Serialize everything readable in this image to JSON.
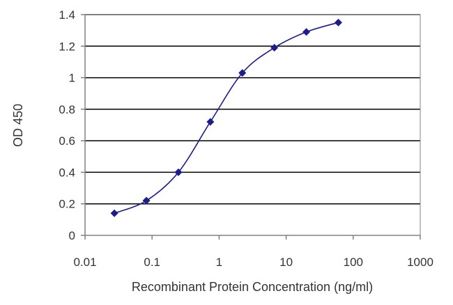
{
  "chart_data": {
    "type": "line",
    "title": "",
    "xlabel": "Recombinant Protein Concentration (ng/ml)",
    "ylabel": "OD 450",
    "xscale": "log",
    "xlim": [
      0.01,
      1000
    ],
    "ylim": [
      0,
      1.4
    ],
    "x_ticks": [
      0.01,
      0.1,
      1,
      10,
      100,
      1000
    ],
    "x_tick_labels": [
      "0.01",
      "0.1",
      "1",
      "10",
      "100",
      "1000"
    ],
    "y_ticks": [
      0,
      0.2,
      0.4,
      0.6,
      0.8,
      1,
      1.2,
      1.4
    ],
    "y_tick_labels": [
      "0",
      "0.2",
      "0.4",
      "0.6",
      "0.8",
      "1",
      "1.2",
      "1.4"
    ],
    "grid": "horizontal",
    "legend": "none",
    "series": [
      {
        "color": "#1c1c8c",
        "marker": "diamond",
        "line": "smooth",
        "x": [
          0.0274,
          0.0823,
          0.247,
          0.741,
          2.22,
          6.67,
          20,
          60
        ],
        "y": [
          0.14,
          0.22,
          0.4,
          0.72,
          1.03,
          1.19,
          1.29,
          1.35
        ]
      }
    ]
  },
  "colors": {
    "plot_background": "#ffffff",
    "gridline": "#000000",
    "axis": "#808080",
    "text": "#333333"
  }
}
